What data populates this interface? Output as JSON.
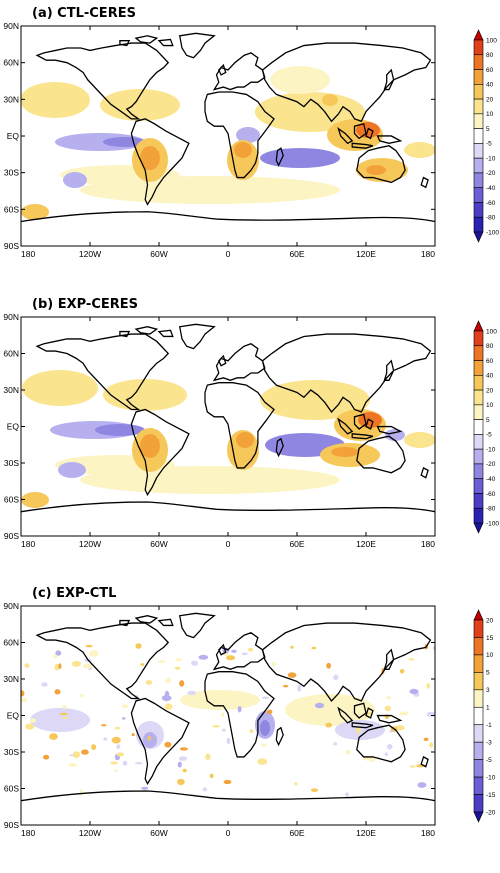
{
  "figure": {
    "panels": [
      {
        "id": "a",
        "title": "(a) CTL-CERES",
        "x_ticks": [
          "180",
          "120W",
          "60W",
          "0",
          "60E",
          "120E",
          "180"
        ],
        "y_ticks": [
          "90N",
          "60N",
          "30N",
          "EQ",
          "30S",
          "60S",
          "90S"
        ],
        "colorbar": {
          "levels": [
            "100",
            "80",
            "60",
            "40",
            "20",
            "10",
            "5",
            "-5",
            "-10",
            "-20",
            "-40",
            "-60",
            "-80",
            "-100"
          ],
          "colors": [
            "#c40000",
            "#e0401a",
            "#ef7526",
            "#f3a23a",
            "#f6c85a",
            "#fae48e",
            "#fdf4c4",
            "#ffffff",
            "#dcd8f6",
            "#b6b0ef",
            "#8f86e2",
            "#6a5fd4",
            "#4a3fc4",
            "#2c22b2",
            "#1a1496"
          ]
        }
      },
      {
        "id": "b",
        "title": "(b) EXP-CERES",
        "x_ticks": [
          "180",
          "120W",
          "60W",
          "0",
          "60E",
          "120E",
          "180"
        ],
        "y_ticks": [
          "90N",
          "60N",
          "30N",
          "EQ",
          "30S",
          "60S",
          "90S"
        ],
        "colorbar": {
          "levels": [
            "100",
            "80",
            "60",
            "40",
            "20",
            "10",
            "5",
            "-5",
            "-10",
            "-20",
            "-40",
            "-60",
            "-80",
            "-100"
          ],
          "colors": [
            "#c40000",
            "#e0401a",
            "#ef7526",
            "#f3a23a",
            "#f6c85a",
            "#fae48e",
            "#fdf4c4",
            "#ffffff",
            "#dcd8f6",
            "#b6b0ef",
            "#8f86e2",
            "#6a5fd4",
            "#4a3fc4",
            "#2c22b2",
            "#1a1496"
          ]
        }
      },
      {
        "id": "c",
        "title": "(c) EXP-CTL",
        "x_ticks": [
          "180",
          "120W",
          "60W",
          "0",
          "60E",
          "120E",
          "180"
        ],
        "y_ticks": [
          "90N",
          "60N",
          "30N",
          "EQ",
          "30S",
          "60S",
          "90S"
        ],
        "colorbar": {
          "levels": [
            "20",
            "15",
            "10",
            "5",
            "3",
            "1",
            "-1",
            "-3",
            "-5",
            "-10",
            "-15",
            "-20"
          ],
          "colors": [
            "#c40000",
            "#e0401a",
            "#ef7526",
            "#f3a23a",
            "#f6c85a",
            "#fdf4c4",
            "#ffffff",
            "#dcd8f6",
            "#b6b0ef",
            "#8f86e2",
            "#6a5fd4",
            "#4a3fc4",
            "#1a1496"
          ]
        }
      }
    ]
  }
}
